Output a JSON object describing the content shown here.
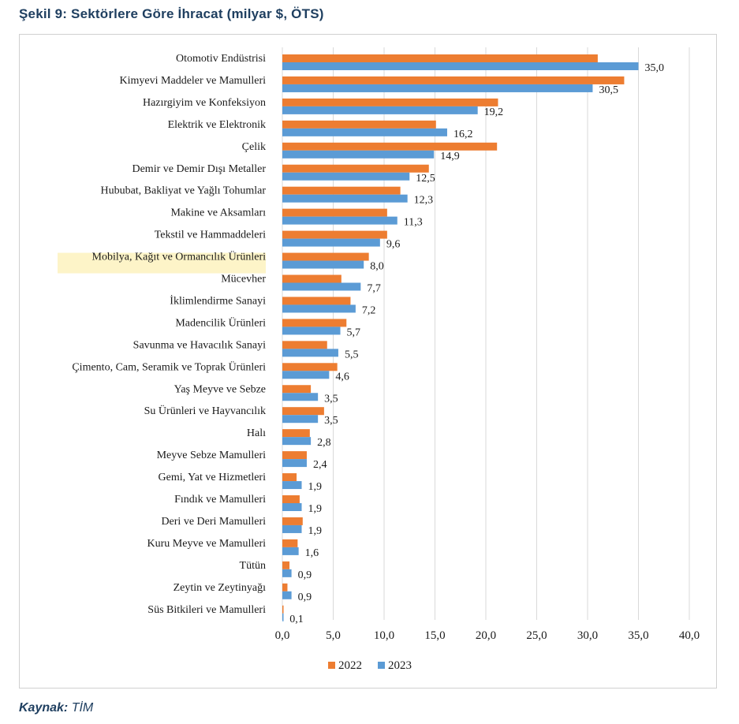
{
  "title": "Şekil 9: Sektörlere Göre İhracat (milyar $, ÖTS)",
  "source": {
    "label": "Kaynak:",
    "value": "TİM"
  },
  "colors": {
    "series_2022": "#ed7d31",
    "series_2023": "#5b9bd5",
    "highlight": "#fdf4c8",
    "grid": "#d9d9d9",
    "text": "#1a1a1a",
    "title": "#1f3f60"
  },
  "chart_data": {
    "type": "bar",
    "orientation": "horizontal",
    "categories": [
      "Otomotiv Endüstrisi",
      "Kimyevi Maddeler ve Mamulleri",
      "Hazırgiyim ve Konfeksiyon",
      "Elektrik ve Elektronik",
      "Çelik",
      "Demir ve Demir Dışı Metaller",
      "Hububat, Bakliyat ve Yağlı Tohumlar",
      "Makine ve Aksamları",
      "Tekstil ve Hammaddeleri",
      "Mobilya, Kağıt ve Ormancılık Ürünleri",
      "Mücevher",
      "İklimlendirme Sanayi",
      "Madencilik Ürünleri",
      "Savunma ve Havacılık Sanayi",
      "Çimento, Cam, Seramik ve Toprak Ürünleri",
      "Yaş Meyve ve Sebze",
      "Su Ürünleri ve Hayvancılık",
      "Halı",
      "Meyve Sebze Mamulleri",
      "Gemi, Yat ve Hizmetleri",
      "Fındık ve Mamulleri",
      "Deri ve Deri Mamulleri",
      "Kuru Meyve ve Mamulleri",
      "Tütün",
      "Zeytin ve Zeytinyağı",
      "Süs Bitkileri ve Mamulleri"
    ],
    "highlight_category": "Mobilya, Kağıt ve Ormancılık Ürünleri",
    "series": [
      {
        "name": "2022",
        "values": [
          31.0,
          33.6,
          21.2,
          15.1,
          21.1,
          14.4,
          11.6,
          10.3,
          10.3,
          8.5,
          5.8,
          6.7,
          6.3,
          4.4,
          5.4,
          2.8,
          4.1,
          2.7,
          2.4,
          1.4,
          1.7,
          2.0,
          1.5,
          0.7,
          0.5,
          0.1
        ]
      },
      {
        "name": "2023",
        "values": [
          35.0,
          30.5,
          19.2,
          16.2,
          14.9,
          12.5,
          12.3,
          11.3,
          9.6,
          8.0,
          7.7,
          7.2,
          5.7,
          5.5,
          4.6,
          3.5,
          3.5,
          2.8,
          2.4,
          1.9,
          1.9,
          1.9,
          1.6,
          0.9,
          0.9,
          0.1
        ]
      }
    ],
    "value_labels": [
      "35,0",
      "30,5",
      "19,2",
      "16,2",
      "14,9",
      "12,5",
      "12,3",
      "11,3",
      "9,6",
      "8,0",
      "7,7",
      "7,2",
      "5,7",
      "5,5",
      "4,6",
      "3,5",
      "3,5",
      "2,8",
      "2,4",
      "1,9",
      "1,9",
      "1,9",
      "1,6",
      "0,9",
      "0,9",
      "0,1"
    ],
    "xlim": [
      0,
      40
    ],
    "xticks": [
      "0,0",
      "5,0",
      "10,0",
      "15,0",
      "20,0",
      "25,0",
      "30,0",
      "35,0",
      "40,0"
    ],
    "grid": true,
    "legend": [
      "2022",
      "2023"
    ],
    "legend_position": "bottom"
  }
}
